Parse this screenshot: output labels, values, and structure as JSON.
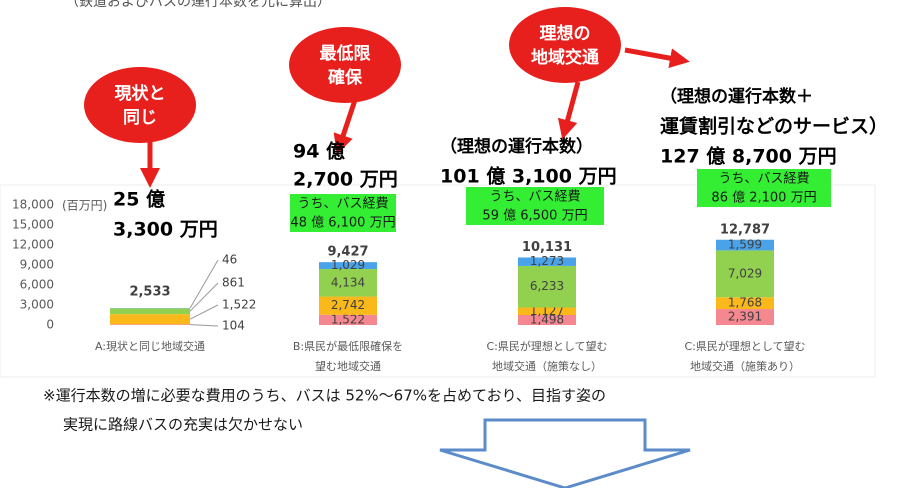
{
  "chart_data": {
    "type": "bar",
    "stacked": true,
    "top_note": "（鉄道およびバスの運行本数を元に算出）",
    "y_unit": "(百万円)",
    "categories": [
      [
        "A:現状と同じ地域交通"
      ],
      [
        "B:県民が最低限確保を",
        "望む地域交通"
      ],
      [
        "C:県民が理想として望む",
        "地域交通（施策なし）"
      ],
      [
        "C:県民が理想として望む",
        "地域交通（施策あり）"
      ]
    ],
    "series": [
      {
        "color": "#f4878f",
        "values": [
          104,
          1522,
          1498,
          2391
        ],
        "value_labels": [
          "104",
          "1,522",
          "1,498",
          "2,391"
        ]
      },
      {
        "color": "#fbb81a",
        "values": [
          1522,
          2742,
          1127,
          1768
        ],
        "value_labels": [
          "1,522",
          "2,742",
          "1,127",
          "1,768"
        ]
      },
      {
        "color": "#92d050",
        "values": [
          861,
          4134,
          6233,
          7029
        ],
        "value_labels": [
          "861",
          "4,134",
          "6,233",
          "7,029"
        ]
      },
      {
        "color": "#4aa3e8",
        "values": [
          46,
          1029,
          1273,
          1599
        ],
        "value_labels": [
          "46",
          "1,029",
          "1,273",
          "1,599"
        ]
      }
    ],
    "totals": [
      2533,
      9427,
      10131,
      12787
    ],
    "total_labels": [
      "2,533",
      "9,427",
      "10,131",
      "12,787"
    ],
    "ylim": [
      0,
      18000
    ],
    "yticks": [
      0,
      {
        "value": 3000,
        "label": "3,000"
      },
      {
        "value": 6000,
        "label": "6,000"
      },
      {
        "value": 9000,
        "label": "9,000"
      },
      {
        "value": 12000,
        "label": "12,000"
      },
      {
        "value": 15000,
        "label": "15,000"
      },
      {
        "value": 18000,
        "label": "18,000"
      }
    ],
    "badges": [
      [
        "現状と",
        "同じ"
      ],
      [
        "最低限",
        "確保"
      ],
      [
        "理想の",
        "地域交通"
      ]
    ],
    "amounts": [
      [
        "25 億",
        "3,300 万円"
      ],
      [
        "94 億",
        "2,700 万円"
      ],
      [
        "（理想の運行本数）",
        "101 億 3,100 万円"
      ],
      [
        "（理想の運行本数＋",
        "運賃割引などのサービス）",
        "127 億 8,700 万円"
      ]
    ],
    "bus_costs": [
      [
        "うち、バス経費",
        "48 億 6,100 万円"
      ],
      [
        "うち、バス経費",
        "59 億 6,500 万円"
      ],
      [
        "うち、バス経費",
        "86 億 2,100 万円"
      ]
    ],
    "footnote": [
      "※運行本数の増に必要な費用のうち、バスは 52%～67%を占めており、目指す姿の",
      "実現に路線バスの充実は欠かせない"
    ]
  }
}
